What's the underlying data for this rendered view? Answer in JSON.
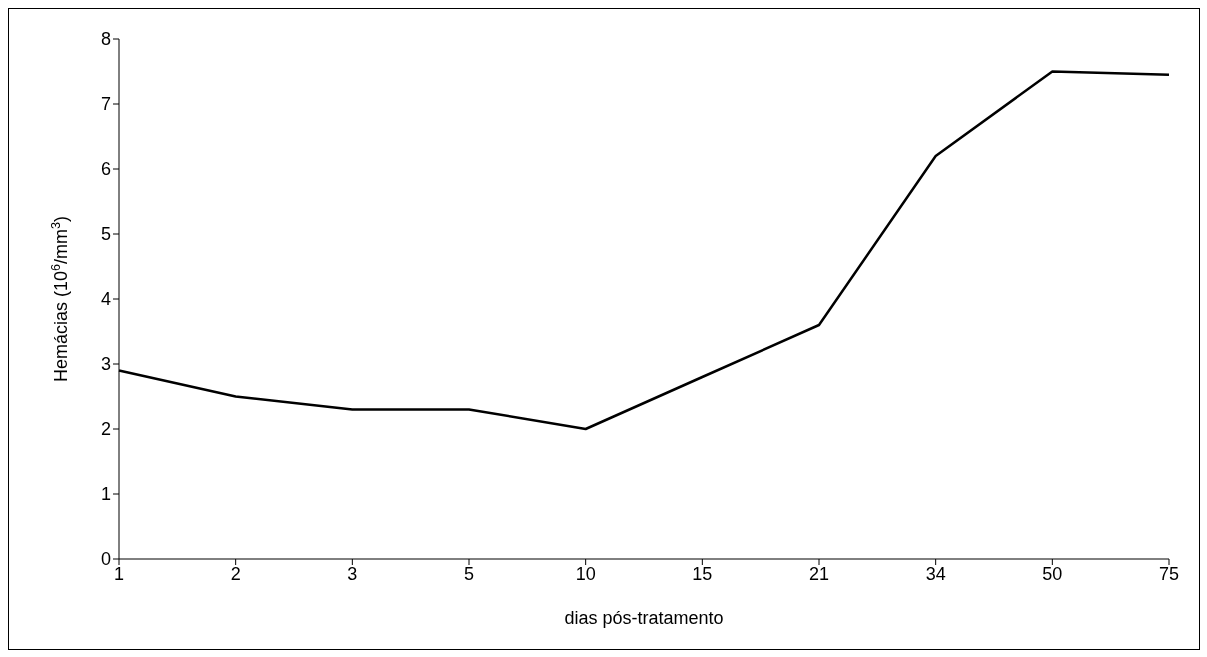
{
  "chart_data": {
    "type": "line",
    "xlabel": "dias pós-tratamento",
    "ylabel": "Hemácias (10$^{6}$/mm$^{3}$)",
    "categories": [
      "1",
      "2",
      "3",
      "5",
      "10",
      "15",
      "21",
      "34",
      "50",
      "75"
    ],
    "series": [
      {
        "color": "#000000",
        "values": [
          2.9,
          2.5,
          2.3,
          2.3,
          2.0,
          2.8,
          3.6,
          6.2,
          7.5,
          7.45
        ]
      }
    ],
    "ylim": [
      0,
      8
    ],
    "yticks": [
      0,
      1,
      2,
      3,
      4,
      5,
      6,
      7,
      8
    ],
    "grid": false,
    "legend": false,
    "marker": "none",
    "line_style": "solid"
  }
}
